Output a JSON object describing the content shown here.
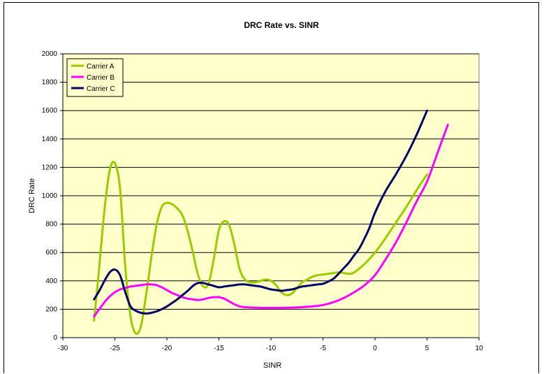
{
  "chart_data": {
    "type": "line",
    "title": "DRC Rate vs. SINR",
    "xlabel": "SINR",
    "ylabel": "DRC Rate",
    "xlim": [
      -30,
      10
    ],
    "ylim": [
      0,
      2000
    ],
    "x_ticks": [
      "-30",
      "-25",
      "-20",
      "-15",
      "-10",
      "-5",
      "0",
      "5",
      "10"
    ],
    "y_ticks": [
      "0",
      "200",
      "400",
      "600",
      "800",
      "1000",
      "1200",
      "1400",
      "1600",
      "1800",
      "2000"
    ],
    "grid": "horizontal",
    "legend_position": "top-left",
    "plot_background": "#ffffcc",
    "series": [
      {
        "name": "Carrier A",
        "color": "#99cc00",
        "x": [
          -27,
          -26.5,
          -26,
          -25.5,
          -25,
          -24.5,
          -24,
          -23.5,
          -23,
          -22.5,
          -22,
          -21.5,
          -21,
          -20.5,
          -20,
          -19.5,
          -19,
          -18.5,
          -18,
          -17.5,
          -17,
          -16.5,
          -16,
          -15.5,
          -15,
          -14.5,
          -14,
          -13.5,
          -13,
          -12.5,
          -12,
          -11.5,
          -11,
          -10.5,
          -10,
          -9.5,
          -9,
          -8.5,
          -8,
          -7.5,
          -7,
          -6.5,
          -6,
          -5.5,
          -5,
          -4.5,
          -4,
          -3.5,
          -3,
          -2.5,
          -2,
          -1,
          0,
          1,
          2,
          3,
          4,
          5
        ],
        "y": [
          120,
          500,
          900,
          1180,
          1230,
          1050,
          500,
          150,
          30,
          80,
          300,
          560,
          790,
          920,
          950,
          940,
          910,
          860,
          750,
          600,
          440,
          360,
          380,
          550,
          760,
          820,
          790,
          650,
          480,
          410,
          390,
          390,
          400,
          410,
          400,
          370,
          320,
          300,
          310,
          350,
          390,
          410,
          430,
          440,
          445,
          450,
          455,
          460,
          455,
          450,
          460,
          520,
          600,
          700,
          810,
          920,
          1040,
          1150
        ]
      },
      {
        "name": "Carrier B",
        "color": "#ff00ff",
        "x": [
          -27,
          -26.5,
          -26,
          -25.5,
          -25,
          -24.5,
          -24,
          -23.5,
          -23,
          -22.5,
          -22,
          -21.5,
          -21,
          -20.5,
          -20,
          -19.5,
          -19,
          -18.5,
          -18,
          -17.5,
          -17,
          -16.5,
          -16,
          -15.5,
          -15,
          -14.5,
          -14,
          -13.5,
          -13,
          -12.5,
          -12,
          -11,
          -10,
          -9,
          -8,
          -7,
          -6,
          -5,
          -4,
          -3,
          -2,
          -1,
          0,
          1,
          2,
          3,
          4,
          5,
          6,
          7
        ],
        "y": [
          150,
          200,
          250,
          290,
          320,
          340,
          350,
          360,
          365,
          370,
          375,
          375,
          370,
          355,
          335,
          315,
          300,
          285,
          275,
          270,
          265,
          270,
          280,
          285,
          285,
          275,
          255,
          235,
          220,
          215,
          213,
          210,
          210,
          210,
          212,
          215,
          220,
          230,
          250,
          280,
          320,
          370,
          440,
          550,
          670,
          810,
          960,
          1100,
          1300,
          1500
        ]
      },
      {
        "name": "Carrier C",
        "color": "#000066",
        "x": [
          -27,
          -26.5,
          -26,
          -25.5,
          -25,
          -24.5,
          -24,
          -23.5,
          -23,
          -22.5,
          -22,
          -21.5,
          -21,
          -20.5,
          -20,
          -19.5,
          -19,
          -18.5,
          -18,
          -17.5,
          -17,
          -16.5,
          -16,
          -15.5,
          -15,
          -14.5,
          -14,
          -13.5,
          -13,
          -12.5,
          -12,
          -11.5,
          -11,
          -10.5,
          -10,
          -9.5,
          -9,
          -8.5,
          -8,
          -7.5,
          -7,
          -6.5,
          -6,
          -5.5,
          -5,
          -4.5,
          -4,
          -3.5,
          -3,
          -2.5,
          -2,
          -1.5,
          -1,
          -0.5,
          0,
          1,
          2,
          3,
          4,
          5
        ],
        "y": [
          270,
          330,
          400,
          460,
          480,
          440,
          320,
          220,
          190,
          175,
          170,
          175,
          185,
          200,
          220,
          245,
          270,
          300,
          330,
          365,
          385,
          385,
          375,
          365,
          355,
          360,
          365,
          370,
          375,
          375,
          370,
          365,
          360,
          350,
          340,
          335,
          330,
          335,
          340,
          350,
          360,
          365,
          370,
          375,
          380,
          395,
          415,
          450,
          490,
          530,
          580,
          630,
          700,
          780,
          880,
          1030,
          1150,
          1280,
          1430,
          1600
        ]
      }
    ]
  }
}
